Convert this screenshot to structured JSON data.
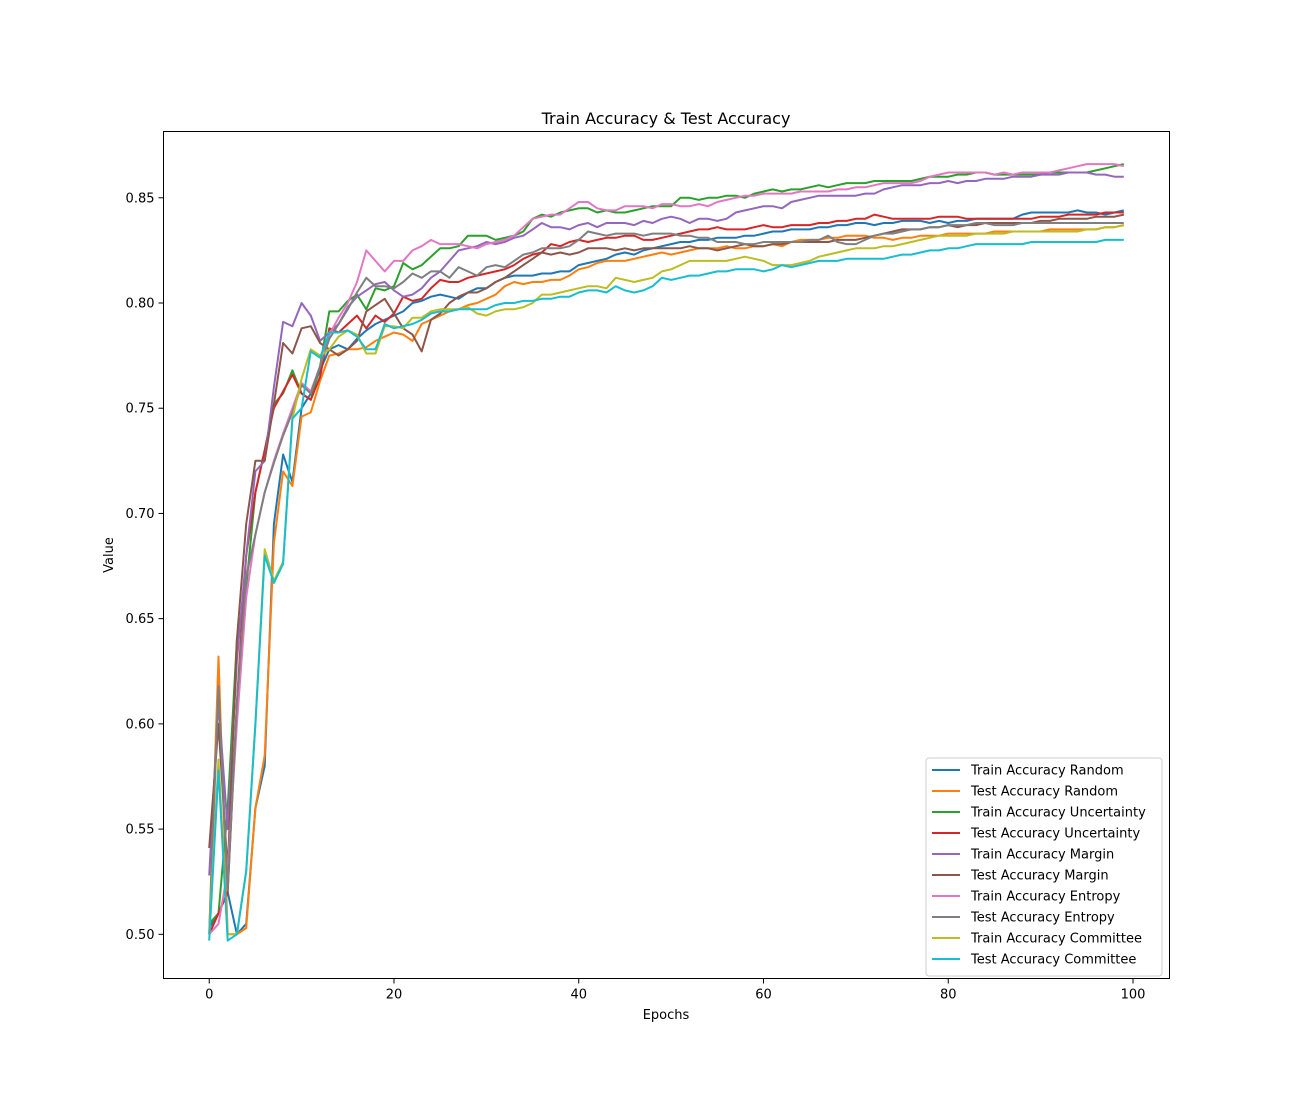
{
  "chart_data": {
    "type": "line",
    "title": "Train Accuracy & Test Accuracy",
    "xlabel": "Epochs",
    "ylabel": "Value",
    "xlim": [
      -4.95,
      103.95
    ],
    "ylim": [
      0.479,
      0.8815
    ],
    "xticks": [
      0,
      20,
      40,
      60,
      80,
      100
    ],
    "xtick_labels": [
      "0",
      "20",
      "40",
      "60",
      "80",
      "100"
    ],
    "yticks": [
      0.5,
      0.55,
      0.6,
      0.65,
      0.7,
      0.75,
      0.8,
      0.85
    ],
    "ytick_labels": [
      "0.50",
      "0.55",
      "0.60",
      "0.65",
      "0.70",
      "0.75",
      "0.80",
      "0.85"
    ],
    "grid": false,
    "legend_position": "lower-right",
    "x": [
      0,
      1,
      2,
      3,
      4,
      5,
      6,
      7,
      8,
      9,
      10,
      11,
      12,
      13,
      14,
      15,
      16,
      17,
      18,
      19,
      20,
      21,
      22,
      23,
      24,
      25,
      26,
      27,
      28,
      29,
      30,
      31,
      32,
      33,
      34,
      35,
      36,
      37,
      38,
      39,
      40,
      41,
      42,
      43,
      44,
      45,
      46,
      47,
      48,
      49,
      50,
      51,
      52,
      53,
      54,
      55,
      56,
      57,
      58,
      59,
      60,
      61,
      62,
      63,
      64,
      65,
      66,
      67,
      68,
      69,
      70,
      71,
      72,
      73,
      74,
      75,
      76,
      77,
      78,
      79,
      80,
      81,
      82,
      83,
      84,
      85,
      86,
      87,
      88,
      89,
      90,
      91,
      92,
      93,
      94,
      95,
      96,
      97,
      98,
      99
    ],
    "series": [
      {
        "name": "Train Accuracy Random",
        "color": "#1f77b4",
        "values": [
          0.503,
          0.51,
          0.52,
          0.5,
          0.505,
          0.56,
          0.58,
          0.695,
          0.728,
          0.715,
          0.75,
          0.757,
          0.768,
          0.778,
          0.78,
          0.778,
          0.783,
          0.787,
          0.79,
          0.792,
          0.794,
          0.796,
          0.8,
          0.801,
          0.803,
          0.804,
          0.803,
          0.802,
          0.805,
          0.807,
          0.807,
          0.81,
          0.812,
          0.813,
          0.813,
          0.813,
          0.814,
          0.814,
          0.815,
          0.815,
          0.818,
          0.819,
          0.82,
          0.821,
          0.823,
          0.824,
          0.823,
          0.825,
          0.826,
          0.827,
          0.828,
          0.829,
          0.829,
          0.83,
          0.83,
          0.831,
          0.831,
          0.831,
          0.832,
          0.832,
          0.833,
          0.834,
          0.834,
          0.835,
          0.835,
          0.835,
          0.836,
          0.836,
          0.837,
          0.837,
          0.838,
          0.838,
          0.837,
          0.838,
          0.838,
          0.839,
          0.839,
          0.839,
          0.838,
          0.839,
          0.838,
          0.839,
          0.839,
          0.84,
          0.84,
          0.84,
          0.84,
          0.84,
          0.842,
          0.843,
          0.843,
          0.843,
          0.843,
          0.843,
          0.844,
          0.843,
          0.843,
          0.842,
          0.843,
          0.844
        ]
      },
      {
        "name": "Test Accuracy Random",
        "color": "#ff7f0e",
        "values": [
          0.5,
          0.632,
          0.5,
          0.5,
          0.503,
          0.56,
          0.585,
          0.686,
          0.72,
          0.713,
          0.746,
          0.748,
          0.763,
          0.775,
          0.776,
          0.778,
          0.778,
          0.779,
          0.782,
          0.784,
          0.786,
          0.785,
          0.782,
          0.79,
          0.792,
          0.794,
          0.796,
          0.797,
          0.799,
          0.8,
          0.802,
          0.804,
          0.808,
          0.81,
          0.809,
          0.81,
          0.81,
          0.811,
          0.811,
          0.813,
          0.816,
          0.817,
          0.819,
          0.82,
          0.82,
          0.82,
          0.821,
          0.822,
          0.823,
          0.824,
          0.823,
          0.824,
          0.825,
          0.826,
          0.826,
          0.826,
          0.827,
          0.826,
          0.826,
          0.827,
          0.827,
          0.828,
          0.827,
          0.829,
          0.83,
          0.83,
          0.83,
          0.831,
          0.831,
          0.832,
          0.832,
          0.832,
          0.831,
          0.831,
          0.83,
          0.831,
          0.831,
          0.832,
          0.832,
          0.832,
          0.833,
          0.833,
          0.833,
          0.833,
          0.833,
          0.834,
          0.834,
          0.834,
          0.834,
          0.834,
          0.834,
          0.835,
          0.835,
          0.835,
          0.835,
          0.835,
          0.835,
          0.836,
          0.836,
          0.837
        ]
      },
      {
        "name": "Train Accuracy Uncertainty",
        "color": "#2ca02c",
        "values": [
          0.505,
          0.51,
          0.56,
          0.64,
          0.665,
          0.71,
          0.73,
          0.752,
          0.757,
          0.768,
          0.757,
          0.754,
          0.77,
          0.796,
          0.796,
          0.801,
          0.804,
          0.797,
          0.807,
          0.806,
          0.808,
          0.819,
          0.816,
          0.818,
          0.822,
          0.826,
          0.826,
          0.827,
          0.832,
          0.832,
          0.832,
          0.83,
          0.831,
          0.832,
          0.834,
          0.84,
          0.842,
          0.841,
          0.843,
          0.844,
          0.845,
          0.845,
          0.843,
          0.844,
          0.843,
          0.843,
          0.844,
          0.845,
          0.846,
          0.846,
          0.846,
          0.85,
          0.85,
          0.849,
          0.85,
          0.85,
          0.851,
          0.851,
          0.85,
          0.852,
          0.853,
          0.854,
          0.853,
          0.854,
          0.854,
          0.855,
          0.856,
          0.855,
          0.856,
          0.857,
          0.857,
          0.857,
          0.858,
          0.858,
          0.858,
          0.858,
          0.858,
          0.859,
          0.86,
          0.86,
          0.86,
          0.861,
          0.861,
          0.862,
          0.862,
          0.861,
          0.861,
          0.861,
          0.861,
          0.861,
          0.861,
          0.862,
          0.862,
          0.862,
          0.862,
          0.862,
          0.863,
          0.864,
          0.865,
          0.866
        ]
      },
      {
        "name": "Test Accuracy Uncertainty",
        "color": "#d62728",
        "values": [
          0.5,
          0.51,
          0.52,
          0.61,
          0.68,
          0.71,
          0.73,
          0.75,
          0.758,
          0.766,
          0.757,
          0.754,
          0.765,
          0.788,
          0.786,
          0.79,
          0.794,
          0.788,
          0.794,
          0.791,
          0.795,
          0.803,
          0.801,
          0.802,
          0.807,
          0.811,
          0.81,
          0.81,
          0.812,
          0.813,
          0.814,
          0.815,
          0.816,
          0.818,
          0.821,
          0.823,
          0.824,
          0.828,
          0.827,
          0.829,
          0.83,
          0.829,
          0.83,
          0.831,
          0.831,
          0.832,
          0.832,
          0.83,
          0.83,
          0.831,
          0.832,
          0.833,
          0.834,
          0.835,
          0.835,
          0.836,
          0.835,
          0.835,
          0.835,
          0.836,
          0.837,
          0.836,
          0.836,
          0.837,
          0.837,
          0.837,
          0.838,
          0.838,
          0.839,
          0.839,
          0.84,
          0.84,
          0.842,
          0.841,
          0.84,
          0.84,
          0.84,
          0.84,
          0.84,
          0.841,
          0.841,
          0.841,
          0.84,
          0.84,
          0.84,
          0.84,
          0.84,
          0.84,
          0.84,
          0.84,
          0.841,
          0.841,
          0.841,
          0.842,
          0.842,
          0.842,
          0.842,
          0.843,
          0.843,
          0.843
        ]
      },
      {
        "name": "Train Accuracy Margin",
        "color": "#9467bd",
        "values": [
          0.528,
          0.61,
          0.55,
          0.63,
          0.68,
          0.72,
          0.725,
          0.76,
          0.791,
          0.789,
          0.8,
          0.794,
          0.782,
          0.786,
          0.79,
          0.798,
          0.803,
          0.806,
          0.809,
          0.81,
          0.806,
          0.803,
          0.804,
          0.807,
          0.812,
          0.815,
          0.82,
          0.825,
          0.826,
          0.827,
          0.829,
          0.828,
          0.829,
          0.831,
          0.832,
          0.835,
          0.838,
          0.836,
          0.836,
          0.835,
          0.837,
          0.838,
          0.836,
          0.838,
          0.838,
          0.838,
          0.837,
          0.839,
          0.838,
          0.84,
          0.841,
          0.84,
          0.838,
          0.84,
          0.84,
          0.839,
          0.84,
          0.843,
          0.844,
          0.845,
          0.846,
          0.846,
          0.845,
          0.848,
          0.849,
          0.85,
          0.851,
          0.851,
          0.851,
          0.851,
          0.851,
          0.852,
          0.852,
          0.854,
          0.855,
          0.856,
          0.856,
          0.856,
          0.857,
          0.857,
          0.858,
          0.857,
          0.858,
          0.858,
          0.859,
          0.859,
          0.859,
          0.86,
          0.86,
          0.86,
          0.861,
          0.861,
          0.861,
          0.862,
          0.862,
          0.862,
          0.861,
          0.861,
          0.86,
          0.86
        ]
      },
      {
        "name": "Test Accuracy Margin",
        "color": "#8c564b",
        "values": [
          0.541,
          0.6,
          0.53,
          0.64,
          0.695,
          0.725,
          0.725,
          0.752,
          0.781,
          0.776,
          0.788,
          0.789,
          0.781,
          0.778,
          0.775,
          0.778,
          0.782,
          0.796,
          0.799,
          0.802,
          0.795,
          0.788,
          0.785,
          0.777,
          0.792,
          0.795,
          0.8,
          0.803,
          0.805,
          0.805,
          0.807,
          0.81,
          0.812,
          0.815,
          0.818,
          0.821,
          0.824,
          0.823,
          0.824,
          0.823,
          0.824,
          0.826,
          0.826,
          0.826,
          0.825,
          0.826,
          0.825,
          0.826,
          0.826,
          0.826,
          0.826,
          0.826,
          0.827,
          0.826,
          0.826,
          0.825,
          0.826,
          0.827,
          0.828,
          0.827,
          0.827,
          0.828,
          0.828,
          0.829,
          0.829,
          0.829,
          0.829,
          0.829,
          0.83,
          0.83,
          0.83,
          0.831,
          0.832,
          0.833,
          0.834,
          0.835,
          0.835,
          0.835,
          0.836,
          0.836,
          0.837,
          0.836,
          0.837,
          0.837,
          0.838,
          0.838,
          0.838,
          0.838,
          0.838,
          0.838,
          0.839,
          0.839,
          0.84,
          0.84,
          0.84,
          0.84,
          0.841,
          0.841,
          0.841,
          0.842
        ]
      },
      {
        "name": "Train Accuracy Entropy",
        "color": "#e377c2",
        "values": [
          0.5,
          0.505,
          0.53,
          0.6,
          0.66,
          0.69,
          0.71,
          0.725,
          0.738,
          0.75,
          0.762,
          0.758,
          0.77,
          0.785,
          0.793,
          0.8,
          0.81,
          0.825,
          0.82,
          0.815,
          0.82,
          0.82,
          0.825,
          0.827,
          0.83,
          0.828,
          0.828,
          0.828,
          0.827,
          0.826,
          0.828,
          0.829,
          0.83,
          0.832,
          0.836,
          0.84,
          0.841,
          0.842,
          0.842,
          0.845,
          0.848,
          0.848,
          0.845,
          0.844,
          0.844,
          0.846,
          0.846,
          0.846,
          0.845,
          0.847,
          0.847,
          0.846,
          0.846,
          0.847,
          0.846,
          0.848,
          0.849,
          0.85,
          0.851,
          0.851,
          0.852,
          0.852,
          0.852,
          0.852,
          0.853,
          0.853,
          0.853,
          0.853,
          0.854,
          0.854,
          0.855,
          0.855,
          0.856,
          0.857,
          0.857,
          0.857,
          0.857,
          0.858,
          0.86,
          0.861,
          0.862,
          0.862,
          0.862,
          0.862,
          0.862,
          0.861,
          0.862,
          0.861,
          0.862,
          0.862,
          0.862,
          0.862,
          0.863,
          0.864,
          0.865,
          0.866,
          0.866,
          0.866,
          0.866,
          0.865
        ]
      },
      {
        "name": "Test Accuracy Entropy",
        "color": "#7f7f7f",
        "values": [
          0.5,
          0.618,
          0.521,
          0.61,
          0.67,
          0.69,
          0.71,
          0.724,
          0.737,
          0.748,
          0.761,
          0.757,
          0.77,
          0.783,
          0.79,
          0.797,
          0.805,
          0.812,
          0.808,
          0.808,
          0.807,
          0.81,
          0.814,
          0.812,
          0.815,
          0.815,
          0.812,
          0.817,
          0.815,
          0.813,
          0.817,
          0.818,
          0.817,
          0.82,
          0.823,
          0.824,
          0.826,
          0.826,
          0.826,
          0.827,
          0.83,
          0.834,
          0.833,
          0.832,
          0.833,
          0.833,
          0.833,
          0.832,
          0.833,
          0.833,
          0.833,
          0.832,
          0.832,
          0.831,
          0.831,
          0.829,
          0.829,
          0.829,
          0.828,
          0.828,
          0.829,
          0.829,
          0.829,
          0.829,
          0.829,
          0.83,
          0.83,
          0.832,
          0.829,
          0.828,
          0.828,
          0.83,
          0.832,
          0.833,
          0.833,
          0.834,
          0.835,
          0.835,
          0.836,
          0.836,
          0.837,
          0.837,
          0.837,
          0.838,
          0.838,
          0.837,
          0.837,
          0.837,
          0.838,
          0.838,
          0.838,
          0.838,
          0.838,
          0.838,
          0.838,
          0.838,
          0.838,
          0.838,
          0.838,
          0.838
        ]
      },
      {
        "name": "Train Accuracy Committee",
        "color": "#bcbd22",
        "values": [
          0.5,
          0.583,
          0.5,
          0.5,
          0.53,
          0.6,
          0.683,
          0.668,
          0.677,
          0.745,
          0.764,
          0.778,
          0.775,
          0.778,
          0.784,
          0.787,
          0.785,
          0.776,
          0.776,
          0.789,
          0.789,
          0.788,
          0.793,
          0.793,
          0.796,
          0.797,
          0.797,
          0.797,
          0.798,
          0.795,
          0.794,
          0.796,
          0.797,
          0.797,
          0.798,
          0.8,
          0.804,
          0.804,
          0.805,
          0.806,
          0.807,
          0.808,
          0.808,
          0.807,
          0.812,
          0.811,
          0.81,
          0.811,
          0.812,
          0.815,
          0.816,
          0.818,
          0.82,
          0.82,
          0.82,
          0.82,
          0.82,
          0.821,
          0.822,
          0.821,
          0.82,
          0.818,
          0.818,
          0.818,
          0.819,
          0.82,
          0.822,
          0.823,
          0.824,
          0.825,
          0.826,
          0.826,
          0.826,
          0.827,
          0.827,
          0.828,
          0.829,
          0.83,
          0.831,
          0.832,
          0.832,
          0.832,
          0.832,
          0.833,
          0.833,
          0.833,
          0.833,
          0.834,
          0.834,
          0.834,
          0.834,
          0.834,
          0.834,
          0.834,
          0.834,
          0.835,
          0.835,
          0.836,
          0.836,
          0.837
        ]
      },
      {
        "name": "Test Accuracy Committee",
        "color": "#17becf",
        "values": [
          0.497,
          0.578,
          0.497,
          0.5,
          0.53,
          0.6,
          0.68,
          0.667,
          0.676,
          0.745,
          0.75,
          0.777,
          0.774,
          0.786,
          0.786,
          0.787,
          0.784,
          0.778,
          0.778,
          0.79,
          0.788,
          0.789,
          0.79,
          0.792,
          0.795,
          0.796,
          0.796,
          0.797,
          0.797,
          0.797,
          0.797,
          0.799,
          0.8,
          0.8,
          0.801,
          0.801,
          0.802,
          0.802,
          0.803,
          0.803,
          0.805,
          0.806,
          0.806,
          0.805,
          0.808,
          0.806,
          0.805,
          0.806,
          0.808,
          0.812,
          0.811,
          0.812,
          0.813,
          0.813,
          0.814,
          0.815,
          0.815,
          0.816,
          0.816,
          0.816,
          0.815,
          0.816,
          0.818,
          0.817,
          0.818,
          0.819,
          0.82,
          0.82,
          0.82,
          0.821,
          0.821,
          0.821,
          0.821,
          0.821,
          0.822,
          0.823,
          0.823,
          0.824,
          0.825,
          0.825,
          0.826,
          0.826,
          0.827,
          0.828,
          0.828,
          0.828,
          0.828,
          0.828,
          0.828,
          0.829,
          0.829,
          0.829,
          0.829,
          0.829,
          0.829,
          0.829,
          0.829,
          0.83,
          0.83,
          0.83
        ]
      }
    ]
  }
}
